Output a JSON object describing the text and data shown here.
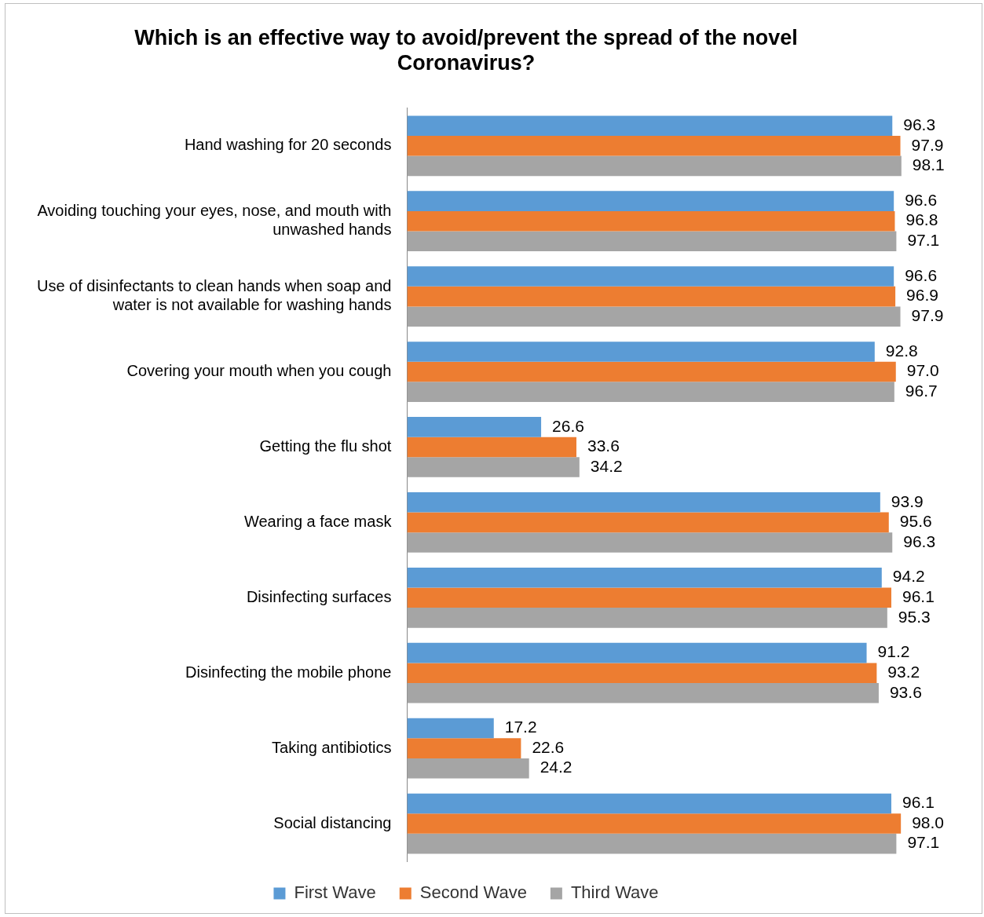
{
  "chart_data": {
    "type": "bar",
    "orientation": "horizontal",
    "title": "Which is an effective way to avoid/prevent the spread of the novel Coronavirus?",
    "categories": [
      "Hand washing for 20 seconds",
      "Avoiding touching your eyes, nose, and mouth with unwashed hands",
      "Use of disinfectants to clean hands when soap and water is not available for washing hands",
      "Covering your mouth when you cough",
      "Getting the flu shot",
      "Wearing a face mask",
      "Disinfecting surfaces",
      "Disinfecting the mobile phone",
      "Taking antibiotics",
      "Social distancing"
    ],
    "series": [
      {
        "name": "First Wave",
        "color": "#5b9bd5",
        "values": [
          96.3,
          96.6,
          96.6,
          92.8,
          26.6,
          93.9,
          94.2,
          91.2,
          17.2,
          96.1
        ],
        "value_labels": [
          "96.3",
          "96.6",
          "96.6",
          "92.8",
          "26.6",
          "93.9",
          "94.2",
          "91.2",
          "17.2",
          "96.1"
        ]
      },
      {
        "name": "Second Wave",
        "color": "#ed7d31",
        "values": [
          97.9,
          96.8,
          96.9,
          97.0,
          33.6,
          95.6,
          96.1,
          93.2,
          22.6,
          98.0
        ],
        "value_labels": [
          "97.9",
          "96.8",
          "96.9",
          "97.0",
          "33.6",
          "95.6",
          "96.1",
          "93.2",
          "22.6",
          "98.0"
        ]
      },
      {
        "name": "Third Wave",
        "color": "#a5a5a5",
        "values": [
          98.1,
          97.1,
          97.9,
          96.7,
          34.2,
          96.3,
          95.3,
          93.6,
          24.2,
          97.1
        ],
        "value_labels": [
          "98.1",
          "97.1",
          "97.9",
          "96.7",
          "34.2",
          "96.3",
          "95.3",
          "93.6",
          "24.2",
          "97.1"
        ]
      }
    ],
    "legend": "bottom"
  }
}
